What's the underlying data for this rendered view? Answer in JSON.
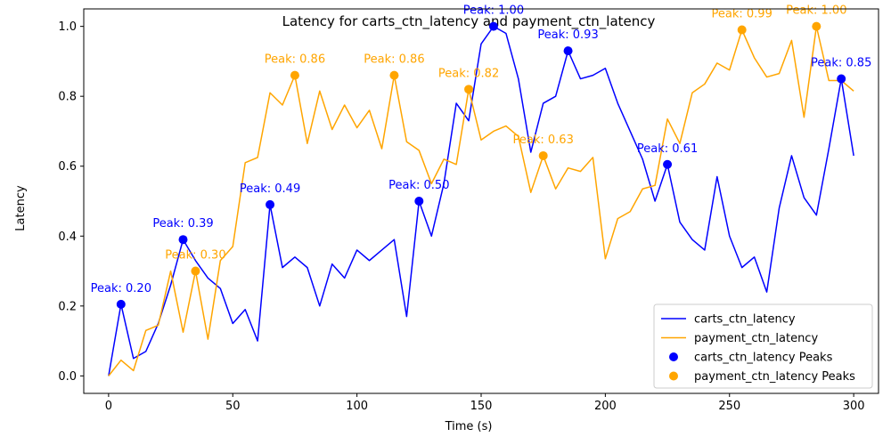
{
  "chart_data": {
    "type": "line",
    "title": "Latency for carts_ctn_latency and payment_ctn_latency",
    "xlabel": "Time (s)",
    "ylabel": "Latency",
    "xlim": [
      -10,
      310
    ],
    "ylim": [
      -0.05,
      1.05
    ],
    "x_ticks": [
      0,
      50,
      100,
      150,
      200,
      250,
      300
    ],
    "y_ticks": [
      "0.0",
      "0.2",
      "0.4",
      "0.6",
      "0.8",
      "1.0"
    ],
    "y_tick_values": [
      0.0,
      0.2,
      0.4,
      0.6,
      0.8,
      1.0
    ],
    "grid": false,
    "legend_position": "bottom-right",
    "x": [
      0,
      5,
      10,
      15,
      20,
      25,
      30,
      35,
      40,
      45,
      50,
      55,
      60,
      65,
      70,
      75,
      80,
      85,
      90,
      95,
      100,
      105,
      110,
      115,
      120,
      125,
      130,
      135,
      140,
      145,
      150,
      155,
      160,
      165,
      170,
      175,
      180,
      185,
      190,
      195,
      200,
      205,
      210,
      215,
      220,
      225,
      230,
      235,
      240,
      245,
      250,
      255,
      260,
      265,
      270,
      275,
      280,
      285,
      290,
      295,
      300
    ],
    "series": [
      {
        "name": "carts_ctn_latency",
        "color": "#0000ff",
        "values": [
          0.0,
          0.205,
          0.05,
          0.07,
          0.15,
          0.26,
          0.39,
          0.33,
          0.28,
          0.25,
          0.15,
          0.19,
          0.1,
          0.49,
          0.31,
          0.34,
          0.31,
          0.2,
          0.32,
          0.28,
          0.36,
          0.33,
          0.36,
          0.39,
          0.17,
          0.5,
          0.4,
          0.55,
          0.78,
          0.73,
          0.95,
          1.0,
          0.98,
          0.85,
          0.64,
          0.78,
          0.8,
          0.93,
          0.85,
          0.86,
          0.88,
          0.78,
          0.7,
          0.62,
          0.5,
          0.605,
          0.44,
          0.39,
          0.36,
          0.57,
          0.4,
          0.31,
          0.34,
          0.24,
          0.48,
          0.63,
          0.51,
          0.46,
          0.65,
          0.85,
          0.63
        ]
      },
      {
        "name": "payment_ctn_latency",
        "color": "#ffa500",
        "values": [
          0.0,
          0.045,
          0.015,
          0.13,
          0.145,
          0.3,
          0.125,
          0.3,
          0.105,
          0.33,
          0.37,
          0.61,
          0.625,
          0.81,
          0.775,
          0.86,
          0.665,
          0.815,
          0.705,
          0.775,
          0.71,
          0.76,
          0.65,
          0.86,
          0.67,
          0.645,
          0.55,
          0.62,
          0.605,
          0.82,
          0.675,
          0.7,
          0.715,
          0.685,
          0.525,
          0.63,
          0.535,
          0.595,
          0.585,
          0.625,
          0.335,
          0.45,
          0.47,
          0.535,
          0.545,
          0.735,
          0.665,
          0.81,
          0.835,
          0.895,
          0.875,
          0.99,
          0.91,
          0.855,
          0.865,
          0.96,
          0.74,
          1.0,
          0.845,
          0.845,
          0.815
        ]
      }
    ],
    "peaks": [
      {
        "series": "carts_ctn_latency",
        "color": "#0000ff",
        "points": [
          {
            "x": 5,
            "y": 0.205,
            "label": "Peak: 0.20"
          },
          {
            "x": 30,
            "y": 0.39,
            "label": "Peak: 0.39"
          },
          {
            "x": 65,
            "y": 0.49,
            "label": "Peak: 0.49"
          },
          {
            "x": 125,
            "y": 0.5,
            "label": "Peak: 0.50"
          },
          {
            "x": 155,
            "y": 1.0,
            "label": "Peak: 1.00"
          },
          {
            "x": 185,
            "y": 0.93,
            "label": "Peak: 0.93"
          },
          {
            "x": 225,
            "y": 0.605,
            "label": "Peak: 0.61"
          },
          {
            "x": 295,
            "y": 0.85,
            "label": "Peak: 0.85"
          }
        ]
      },
      {
        "series": "payment_ctn_latency",
        "color": "#ffa500",
        "points": [
          {
            "x": 35,
            "y": 0.3,
            "label": "Peak: 0.30"
          },
          {
            "x": 75,
            "y": 0.86,
            "label": "Peak: 0.86"
          },
          {
            "x": 115,
            "y": 0.86,
            "label": "Peak: 0.86"
          },
          {
            "x": 145,
            "y": 0.82,
            "label": "Peak: 0.82"
          },
          {
            "x": 175,
            "y": 0.63,
            "label": "Peak: 0.63"
          },
          {
            "x": 255,
            "y": 0.99,
            "label": "Peak: 0.99"
          },
          {
            "x": 285,
            "y": 1.0,
            "label": "Peak: 1.00"
          }
        ]
      }
    ],
    "legend": [
      {
        "label": "carts_ctn_latency",
        "kind": "line",
        "color": "#0000ff"
      },
      {
        "label": "payment_ctn_latency",
        "kind": "line",
        "color": "#ffa500"
      },
      {
        "label": "carts_ctn_latency Peaks",
        "kind": "marker",
        "color": "#0000ff"
      },
      {
        "label": "payment_ctn_latency Peaks",
        "kind": "marker",
        "color": "#ffa500"
      }
    ]
  }
}
